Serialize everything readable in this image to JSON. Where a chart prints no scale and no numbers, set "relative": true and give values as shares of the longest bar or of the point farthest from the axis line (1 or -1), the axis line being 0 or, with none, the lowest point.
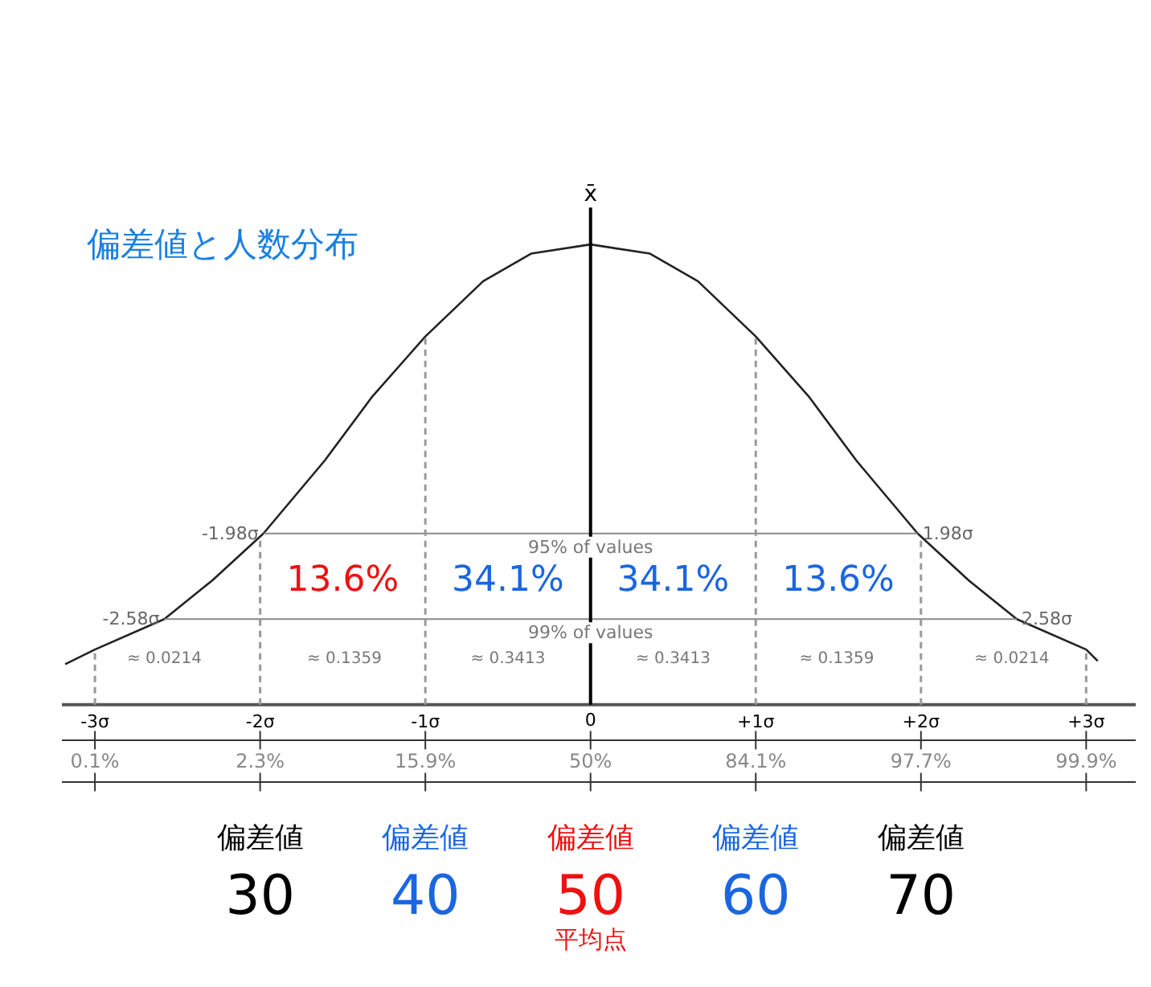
{
  "chart_data": {
    "type": "line",
    "title": "偏差値と人数分布",
    "relative": true,
    "x": [
      -3.18,
      -3.0,
      -2.58,
      -2.29,
      -1.98,
      -1.61,
      -1.32,
      -1.0,
      -0.65,
      -0.36,
      0,
      0.36,
      0.65,
      1.0,
      1.32,
      1.61,
      1.98,
      2.29,
      2.58,
      3.0,
      3.07
    ],
    "series": [
      {
        "color": "#222222",
        "values": [
          0.088,
          0.12,
          0.186,
          0.27,
          0.372,
          0.53,
          0.67,
          0.8,
          0.92,
          0.98,
          1,
          0.98,
          0.92,
          0.8,
          0.67,
          0.53,
          0.372,
          0.27,
          0.186,
          0.12,
          0.095
        ]
      }
    ],
    "xlim": [
      -3.2,
      3.3
    ],
    "xticks": [
      {
        "value": -3,
        "label": "-3σ"
      },
      {
        "value": -2,
        "label": "-2σ"
      },
      {
        "value": -1,
        "label": "-1σ"
      },
      0,
      {
        "value": 1,
        "label": "+1σ"
      },
      {
        "value": 2,
        "label": "+2σ"
      },
      {
        "value": 3,
        "label": "+3σ"
      }
    ],
    "tick_labels": "x",
    "grid": false,
    "marker": "none",
    "line_style": "solid",
    "ref_lines": [
      {
        "axis": "y",
        "value": 0.372,
        "label": "95% of values",
        "color": "#888888",
        "line_style": "solid"
      },
      {
        "axis": "y",
        "value": 0.186,
        "label": "99% of values",
        "color": "#888888",
        "line_style": "solid"
      },
      {
        "axis": "x",
        "value": 0,
        "label": "x̄",
        "color": "#000000",
        "line_style": "solid"
      },
      {
        "axis": "x",
        "value": -3,
        "label": null,
        "color": "#999999",
        "line_style": "dashed"
      },
      {
        "axis": "x",
        "value": -2,
        "label": null,
        "color": "#999999",
        "line_style": "dashed"
      },
      {
        "axis": "x",
        "value": -1,
        "label": null,
        "color": "#999999",
        "line_style": "dashed"
      },
      {
        "axis": "x",
        "value": 1,
        "label": null,
        "color": "#999999",
        "line_style": "dashed"
      },
      {
        "axis": "x",
        "value": 2,
        "label": null,
        "color": "#999999",
        "line_style": "dashed"
      },
      {
        "axis": "x",
        "value": 3,
        "label": null,
        "color": "#999999",
        "line_style": "dashed"
      }
    ],
    "annotations": [
      {
        "text": "-1.98σ",
        "x": -1.98,
        "y": 0.372
      },
      {
        "text": "1.98σ",
        "x": 1.98,
        "y": 0.372
      },
      {
        "text": "-2.58σ",
        "x": -2.58,
        "y": 0.186
      },
      {
        "text": "2.58σ",
        "x": 2.58,
        "y": 0.186
      },
      "13.6%",
      "34.1%",
      "34.1%",
      "13.6%",
      "≈ 0.0214",
      "≈ 0.1359",
      "≈ 0.3413",
      "≈ 0.3413",
      "≈ 0.1359",
      "≈ 0.0214",
      "0.1%",
      "2.3%",
      "15.9%",
      "50%",
      "84.1%",
      "97.7%",
      "99.9%",
      "偏差値",
      "偏差値",
      "偏差値",
      "偏差値",
      "偏差値",
      "30",
      "40",
      "50",
      "60",
      "70",
      "平均点"
    ]
  }
}
